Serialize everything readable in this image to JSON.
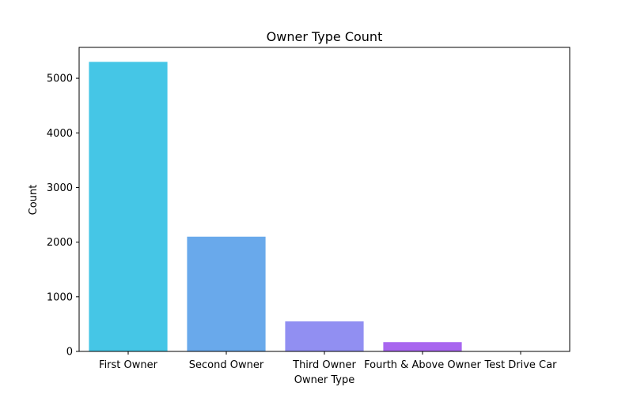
{
  "chart_data": {
    "type": "bar",
    "title": "Owner Type Count",
    "xlabel": "Owner Type",
    "ylabel": "Count",
    "categories": [
      "First Owner",
      "Second Owner",
      "Third Owner",
      "Fourth & Above Owner",
      "Test Drive Car"
    ],
    "values": [
      5300,
      2100,
      550,
      170,
      1
    ],
    "colors": [
      "#45c6e6",
      "#69a9eb",
      "#918ff2",
      "#a866ef",
      "#b64ef0"
    ],
    "ylim": [
      0,
      5565
    ],
    "yticks": [
      0,
      1000,
      2000,
      3000,
      4000,
      5000
    ],
    "grid": false,
    "legend": "none"
  }
}
